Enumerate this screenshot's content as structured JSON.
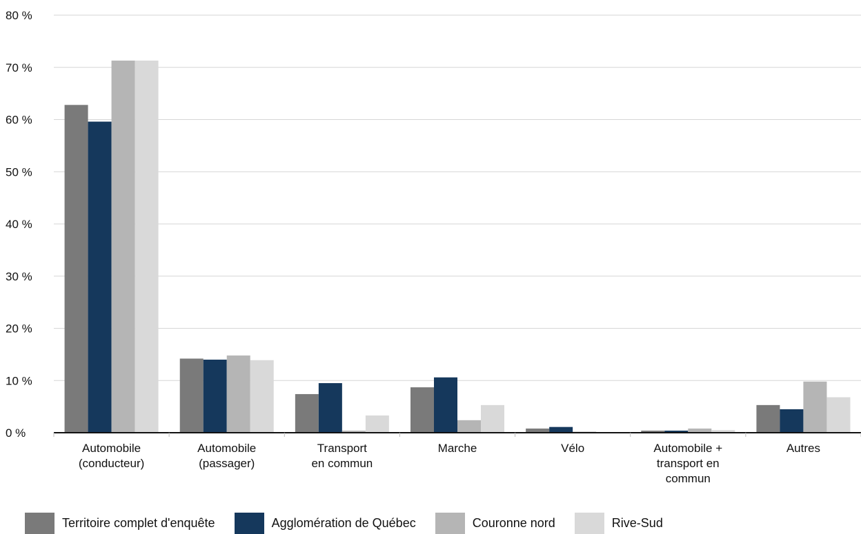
{
  "chart_data": {
    "type": "bar",
    "title": "",
    "xlabel": "",
    "ylabel": "",
    "ylim": [
      0,
      80
    ],
    "y_ticks": [
      "0 %",
      "10 %",
      "20 %",
      "30 %",
      "40 %",
      "50 %",
      "60 %",
      "70 %",
      "80 %"
    ],
    "grid": true,
    "legend_position": "bottom",
    "categories": [
      [
        "Automobile",
        "(conducteur)"
      ],
      [
        "Automobile",
        "(passager)"
      ],
      [
        "Transport",
        "en commun"
      ],
      [
        "Marche"
      ],
      [
        "Vélo"
      ],
      [
        "Automobile +",
        "transport en",
        "commun"
      ],
      [
        "Autres"
      ]
    ],
    "series": [
      {
        "name": "Territoire complet d'enquête",
        "color": "#7a7a7a",
        "values": [
          62.8,
          14.2,
          7.4,
          8.7,
          0.8,
          0.4,
          5.3
        ]
      },
      {
        "name": "Agglomération de Québec",
        "color": "#15385c",
        "values": [
          59.6,
          14.0,
          9.5,
          10.6,
          1.1,
          0.4,
          4.5
        ]
      },
      {
        "name": "Couronne nord",
        "color": "#b5b5b5",
        "values": [
          71.3,
          14.8,
          0.4,
          2.4,
          0.2,
          0.8,
          9.8
        ]
      },
      {
        "name": "Rive-Sud",
        "color": "#d9d9d9",
        "values": [
          71.3,
          13.9,
          3.3,
          5.3,
          0.1,
          0.5,
          6.8
        ]
      }
    ]
  }
}
